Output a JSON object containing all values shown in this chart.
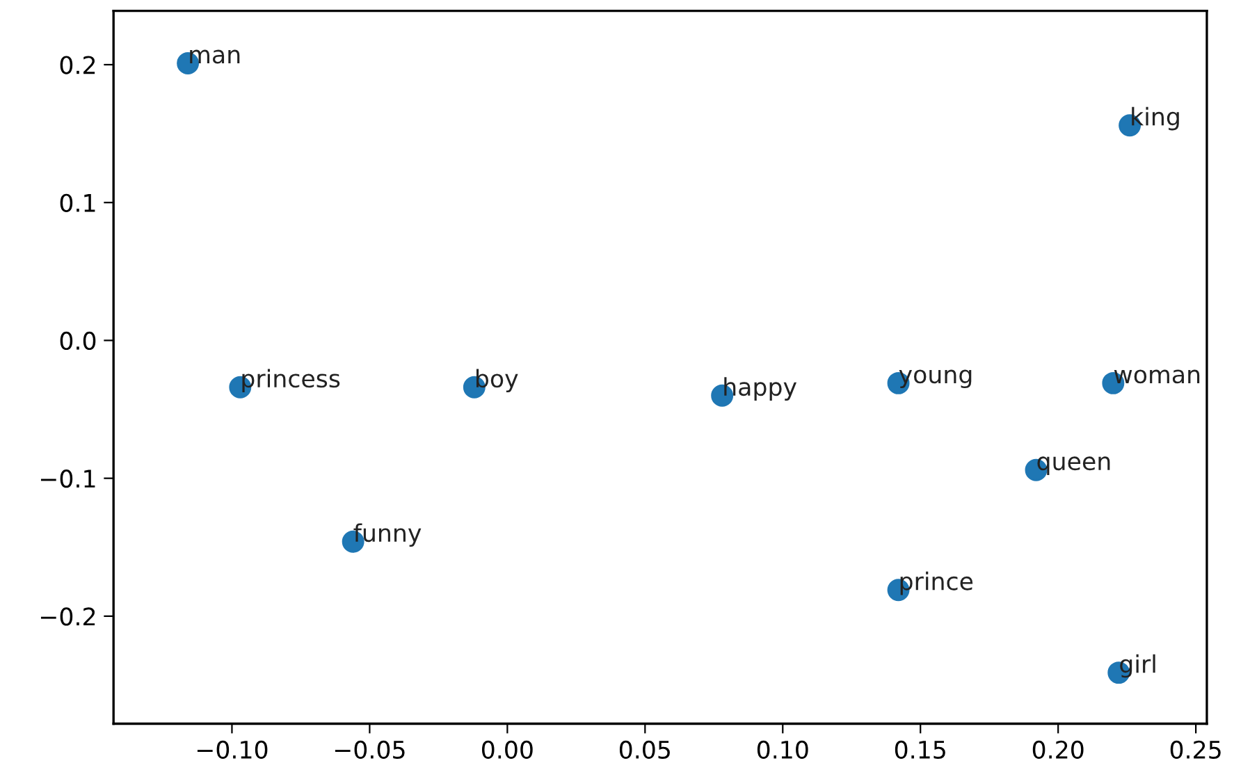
{
  "chart_data": {
    "type": "scatter",
    "x": [
      -0.116,
      -0.097,
      -0.012,
      -0.056,
      0.078,
      0.142,
      0.22,
      0.226,
      0.192,
      0.142,
      0.222
    ],
    "values": [
      0.201,
      -0.034,
      -0.034,
      -0.146,
      -0.04,
      -0.031,
      -0.031,
      0.156,
      -0.094,
      -0.181,
      -0.241
    ],
    "color": "#1f77b4",
    "marker": "circle",
    "annotations": [
      {
        "text": "man",
        "x": -0.116,
        "y": 0.201
      },
      {
        "text": "princess",
        "x": -0.097,
        "y": -0.034
      },
      {
        "text": "boy",
        "x": -0.012,
        "y": -0.034
      },
      {
        "text": "funny",
        "x": -0.056,
        "y": -0.146
      },
      {
        "text": "happy",
        "x": 0.078,
        "y": -0.04
      },
      {
        "text": "young",
        "x": 0.142,
        "y": -0.031
      },
      {
        "text": "woman",
        "x": 0.22,
        "y": -0.031
      },
      {
        "text": "king",
        "x": 0.226,
        "y": 0.156
      },
      {
        "text": "queen",
        "x": 0.192,
        "y": -0.094
      },
      {
        "text": "prince",
        "x": 0.142,
        "y": -0.181
      },
      {
        "text": "girl",
        "x": 0.222,
        "y": -0.241
      }
    ],
    "xlim": [
      -0.143,
      0.254
    ],
    "ylim": [
      -0.278,
      0.239
    ],
    "xticks": [
      {
        "value": -0.1,
        "label": "−0.10"
      },
      {
        "value": -0.05,
        "label": "−0.05"
      },
      {
        "value": 0.0,
        "label": "0.00"
      },
      {
        "value": 0.05,
        "label": "0.05"
      },
      {
        "value": 0.1,
        "label": "0.10"
      },
      {
        "value": 0.15,
        "label": "0.15"
      },
      {
        "value": 0.2,
        "label": "0.20"
      },
      {
        "value": 0.25,
        "label": "0.25"
      }
    ],
    "yticks": [
      {
        "value": -0.2,
        "label": "−0.2"
      },
      {
        "value": -0.1,
        "label": "−0.1"
      },
      {
        "value": 0.0,
        "label": "0.0"
      },
      {
        "value": 0.1,
        "label": "0.1"
      },
      {
        "value": 0.2,
        "label": "0.2"
      }
    ],
    "grid": false
  }
}
